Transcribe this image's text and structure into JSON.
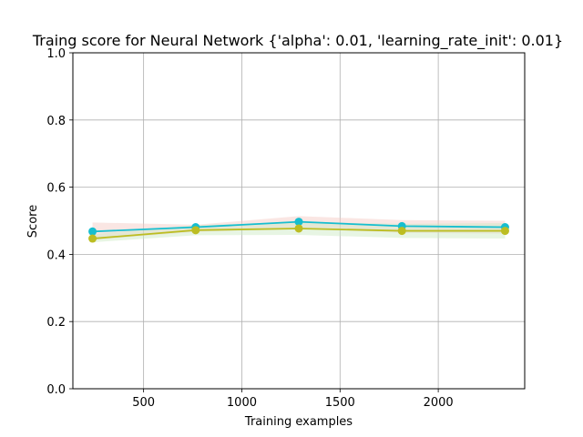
{
  "chart_data": {
    "type": "line",
    "title": "Traing score for Neural Network {'alpha': 0.01, 'learning_rate_init': 0.01}",
    "xlabel": "Training examples",
    "ylabel": "Score",
    "xlim": [
      140,
      2440
    ],
    "ylim": [
      0.0,
      1.0
    ],
    "xticks": [
      500,
      1000,
      1500,
      2000
    ],
    "yticks": [
      0.0,
      0.2,
      0.4,
      0.6,
      0.8,
      1.0
    ],
    "xtick_labels": [
      "500",
      "1000",
      "1500",
      "2000"
    ],
    "ytick_labels": [
      "0.0",
      "0.2",
      "0.4",
      "0.6",
      "0.8",
      "1.0"
    ],
    "grid": true,
    "x": [
      240,
      765,
      1290,
      1815,
      2340
    ],
    "series": [
      {
        "values": [
          0.468,
          0.481,
          0.497,
          0.484,
          0.481
        ],
        "band_lower": [
          0.443,
          0.467,
          0.478,
          0.464,
          0.462
        ],
        "band_upper": [
          0.495,
          0.488,
          0.514,
          0.502,
          0.5
        ],
        "color": "#17becf",
        "band_color": "#f4c7c0"
      },
      {
        "values": [
          0.447,
          0.472,
          0.477,
          0.47,
          0.47
        ],
        "band_lower": [
          0.436,
          0.457,
          0.458,
          0.449,
          0.447
        ],
        "band_upper": [
          0.46,
          0.487,
          0.496,
          0.491,
          0.493
        ],
        "color": "#bcbd22",
        "band_color": "#c9e8c1"
      }
    ]
  }
}
